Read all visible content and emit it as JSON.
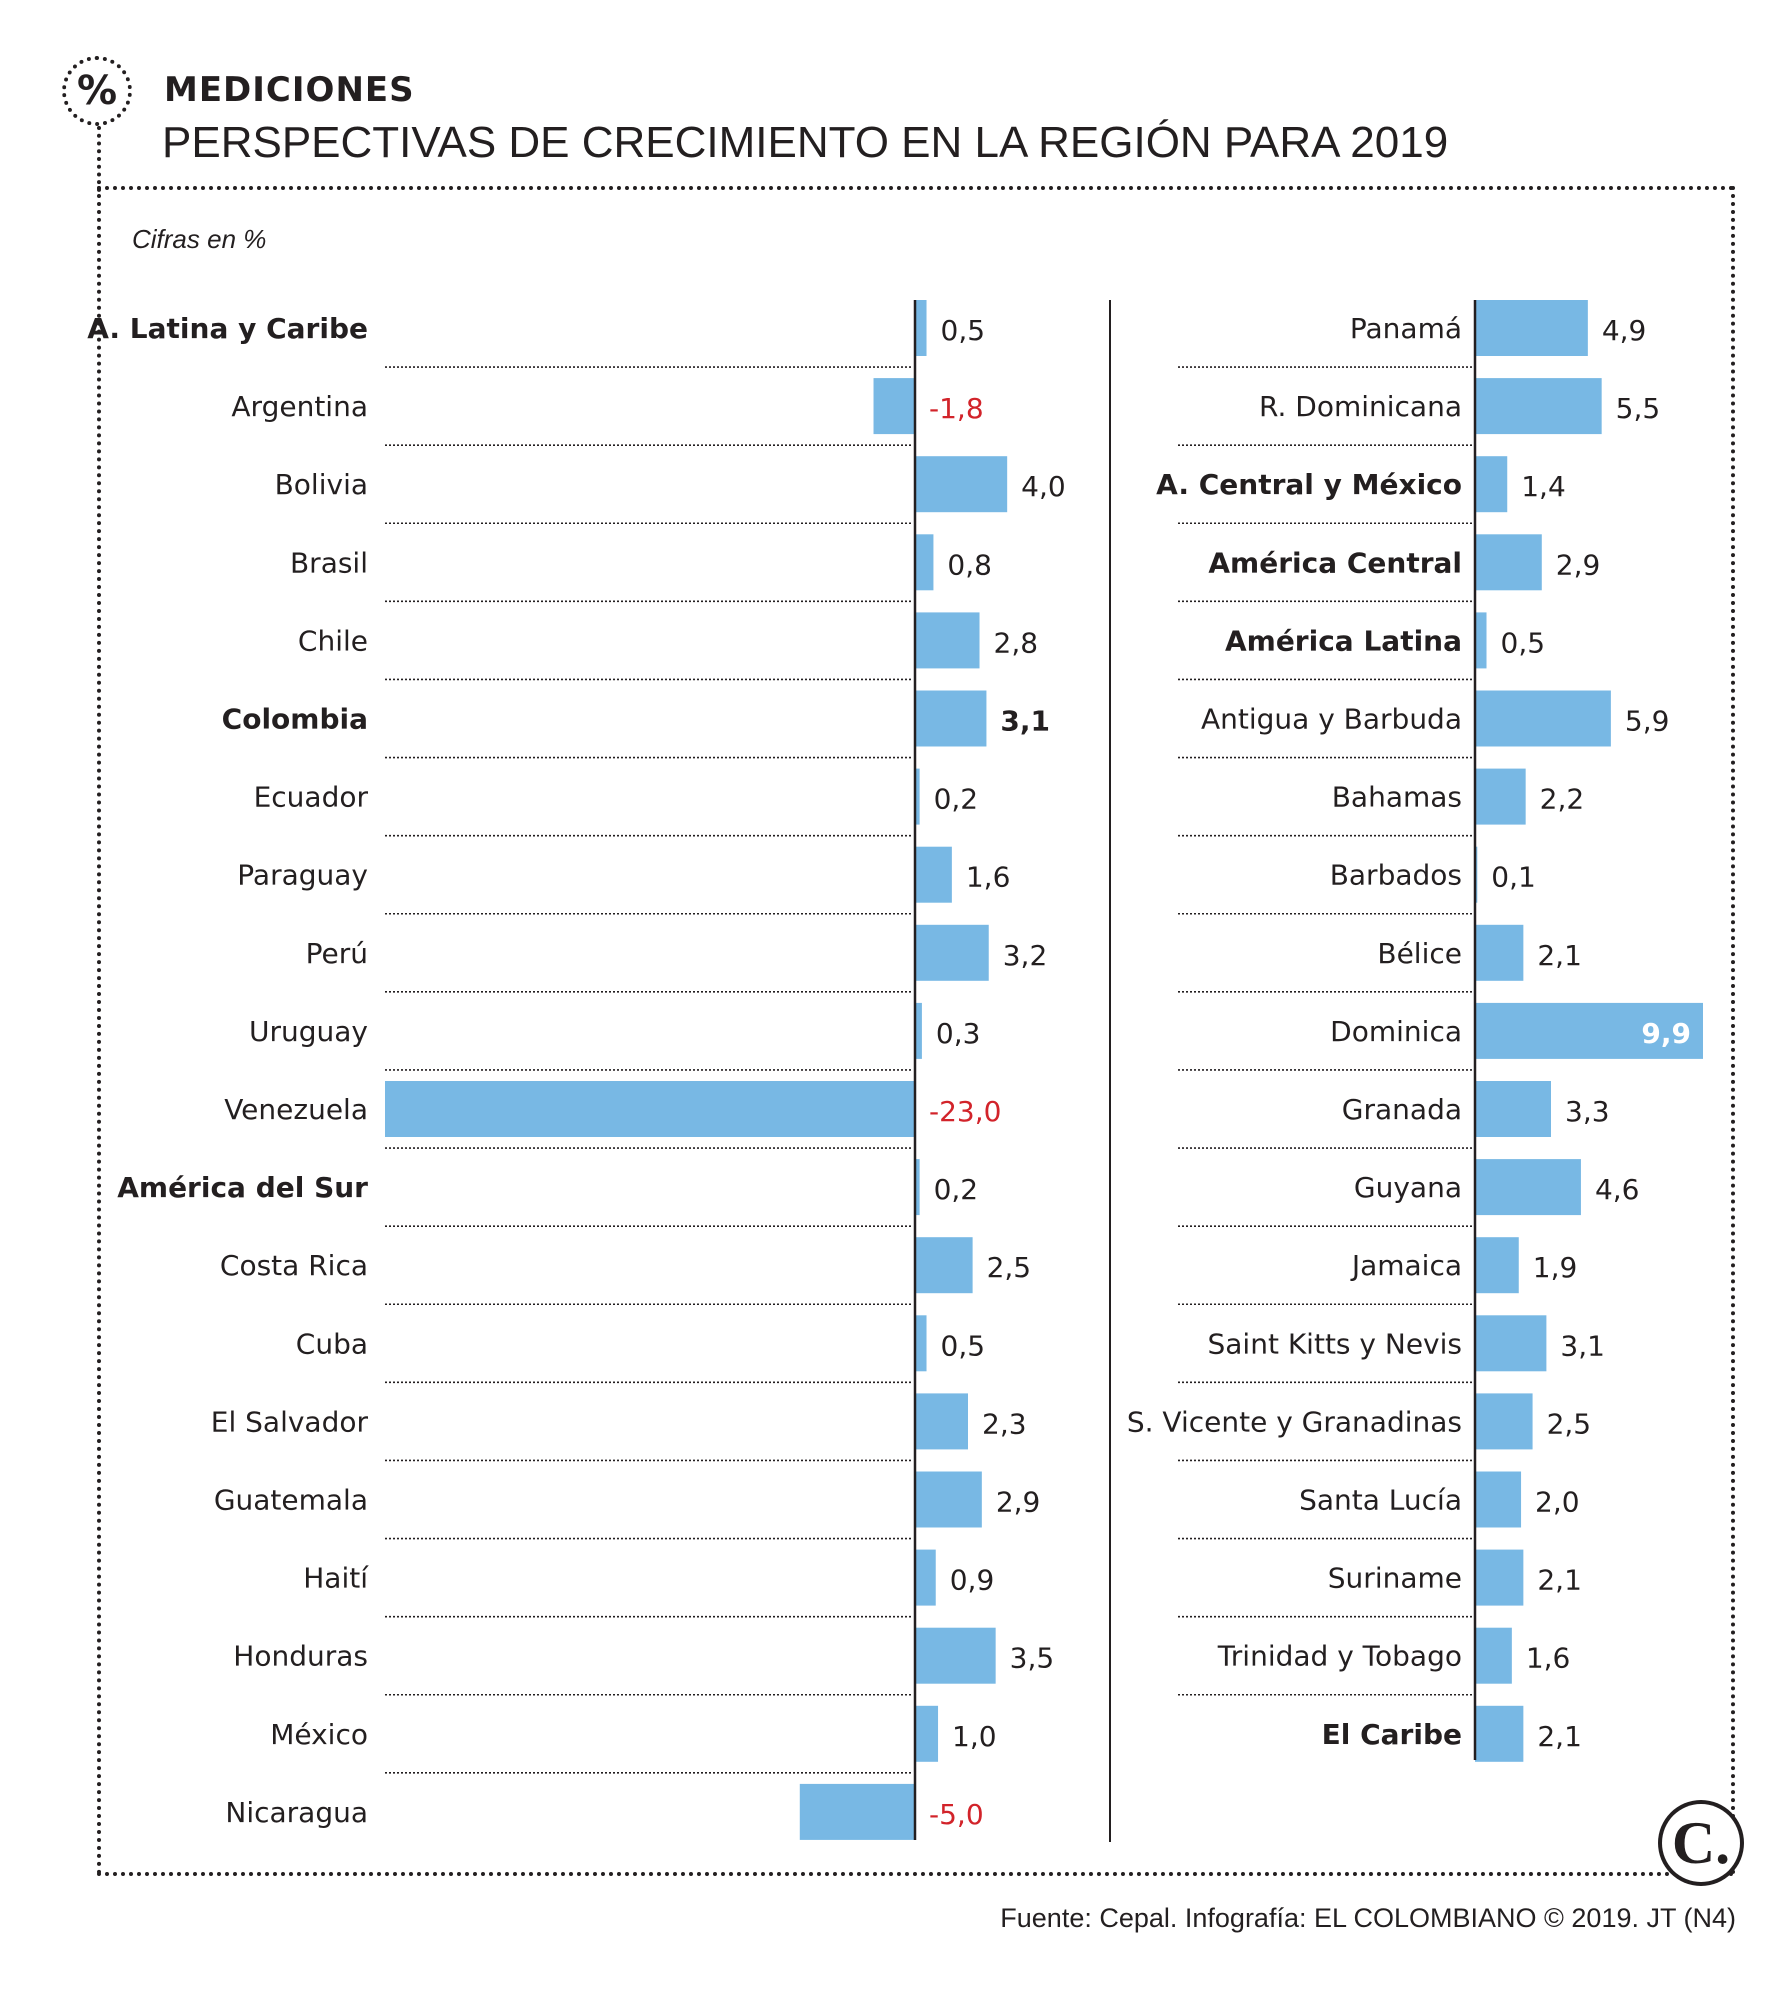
{
  "header": {
    "kicker": "MEDICIONES",
    "title": "PERSPECTIVAS DE CRECIMIENTO EN LA REGIÓN PARA 2019",
    "badge_icon": "percent-icon",
    "badge_glyph": "%"
  },
  "units_note": "Cifras en %",
  "footer": {
    "source": "Fuente: Cepal. Infografía: EL COLOMBIANO © 2019. JT (N4)",
    "brand_logo": "el-colombiano-logo",
    "brand_letter": "C."
  },
  "colors": {
    "bar": "#78b8e4",
    "negative_text": "#d2232a",
    "text": "#231f20",
    "highlight_value_text": "#ffffff"
  },
  "chart_data": [
    {
      "type": "bar",
      "orientation": "horizontal",
      "title": "PERSPECTIVAS DE CRECIMIENTO EN LA REGIÓN PARA 2019",
      "xlabel": "Cifras en %",
      "xlim": [
        -23,
        4
      ],
      "categories": [
        "A. Latina y Caribe",
        "Argentina",
        "Bolivia",
        "Brasil",
        "Chile",
        "Colombia",
        "Ecuador",
        "Paraguay",
        "Perú",
        "Uruguay",
        "Venezuela",
        "América del Sur",
        "Costa Rica",
        "Cuba",
        "El Salvador",
        "Guatemala",
        "Haití",
        "Honduras",
        "México",
        "Nicaragua"
      ],
      "values": [
        0.5,
        -1.8,
        4.0,
        0.8,
        2.8,
        3.1,
        0.2,
        1.6,
        3.2,
        0.3,
        -23.0,
        0.2,
        2.5,
        0.5,
        2.3,
        2.9,
        0.9,
        3.5,
        1.0,
        -5.0
      ],
      "value_labels": [
        "0,5",
        "-1,8",
        "4,0",
        "0,8",
        "2,8",
        "3,1",
        "0,2",
        "1,6",
        "3,2",
        "0,3",
        "-23,0",
        "0,2",
        "2,5",
        "0,5",
        "2,3",
        "2,9",
        "0,9",
        "3,5",
        "1,0",
        "-5,0"
      ],
      "bold": [
        "A. Latina y Caribe",
        "Colombia",
        "América del Sur"
      ],
      "bold_values": [
        "Colombia"
      ]
    },
    {
      "type": "bar",
      "orientation": "horizontal",
      "xlim": [
        0,
        9.9
      ],
      "categories": [
        "Panamá",
        "R. Dominicana",
        "A. Central y México",
        "América Central",
        "América Latina",
        "Antigua y Barbuda",
        "Bahamas",
        "Barbados",
        "Bélice",
        "Dominica",
        "Granada",
        "Guyana",
        "Jamaica",
        "Saint Kitts y Nevis",
        "S. Vicente y Granadinas",
        "Santa Lucía",
        "Suriname",
        "Trinidad y Tobago",
        "El Caribe"
      ],
      "values": [
        4.9,
        5.5,
        1.4,
        2.9,
        0.5,
        5.9,
        2.2,
        0.1,
        2.1,
        9.9,
        3.3,
        4.6,
        1.9,
        3.1,
        2.5,
        2.0,
        2.1,
        1.6,
        2.1
      ],
      "value_labels": [
        "4,9",
        "5,5",
        "1,4",
        "2,9",
        "0,5",
        "5,9",
        "2,2",
        "0,1",
        "2,1",
        "9,9",
        "3,3",
        "4,6",
        "1,9",
        "3,1",
        "2,5",
        "2,0",
        "2,1",
        "1,6",
        "2,1"
      ],
      "bold": [
        "A. Central y México",
        "América Central",
        "América Latina",
        "El Caribe"
      ],
      "bold_values": [
        "Dominica"
      ],
      "inside_value_labels": [
        "Dominica"
      ]
    }
  ]
}
